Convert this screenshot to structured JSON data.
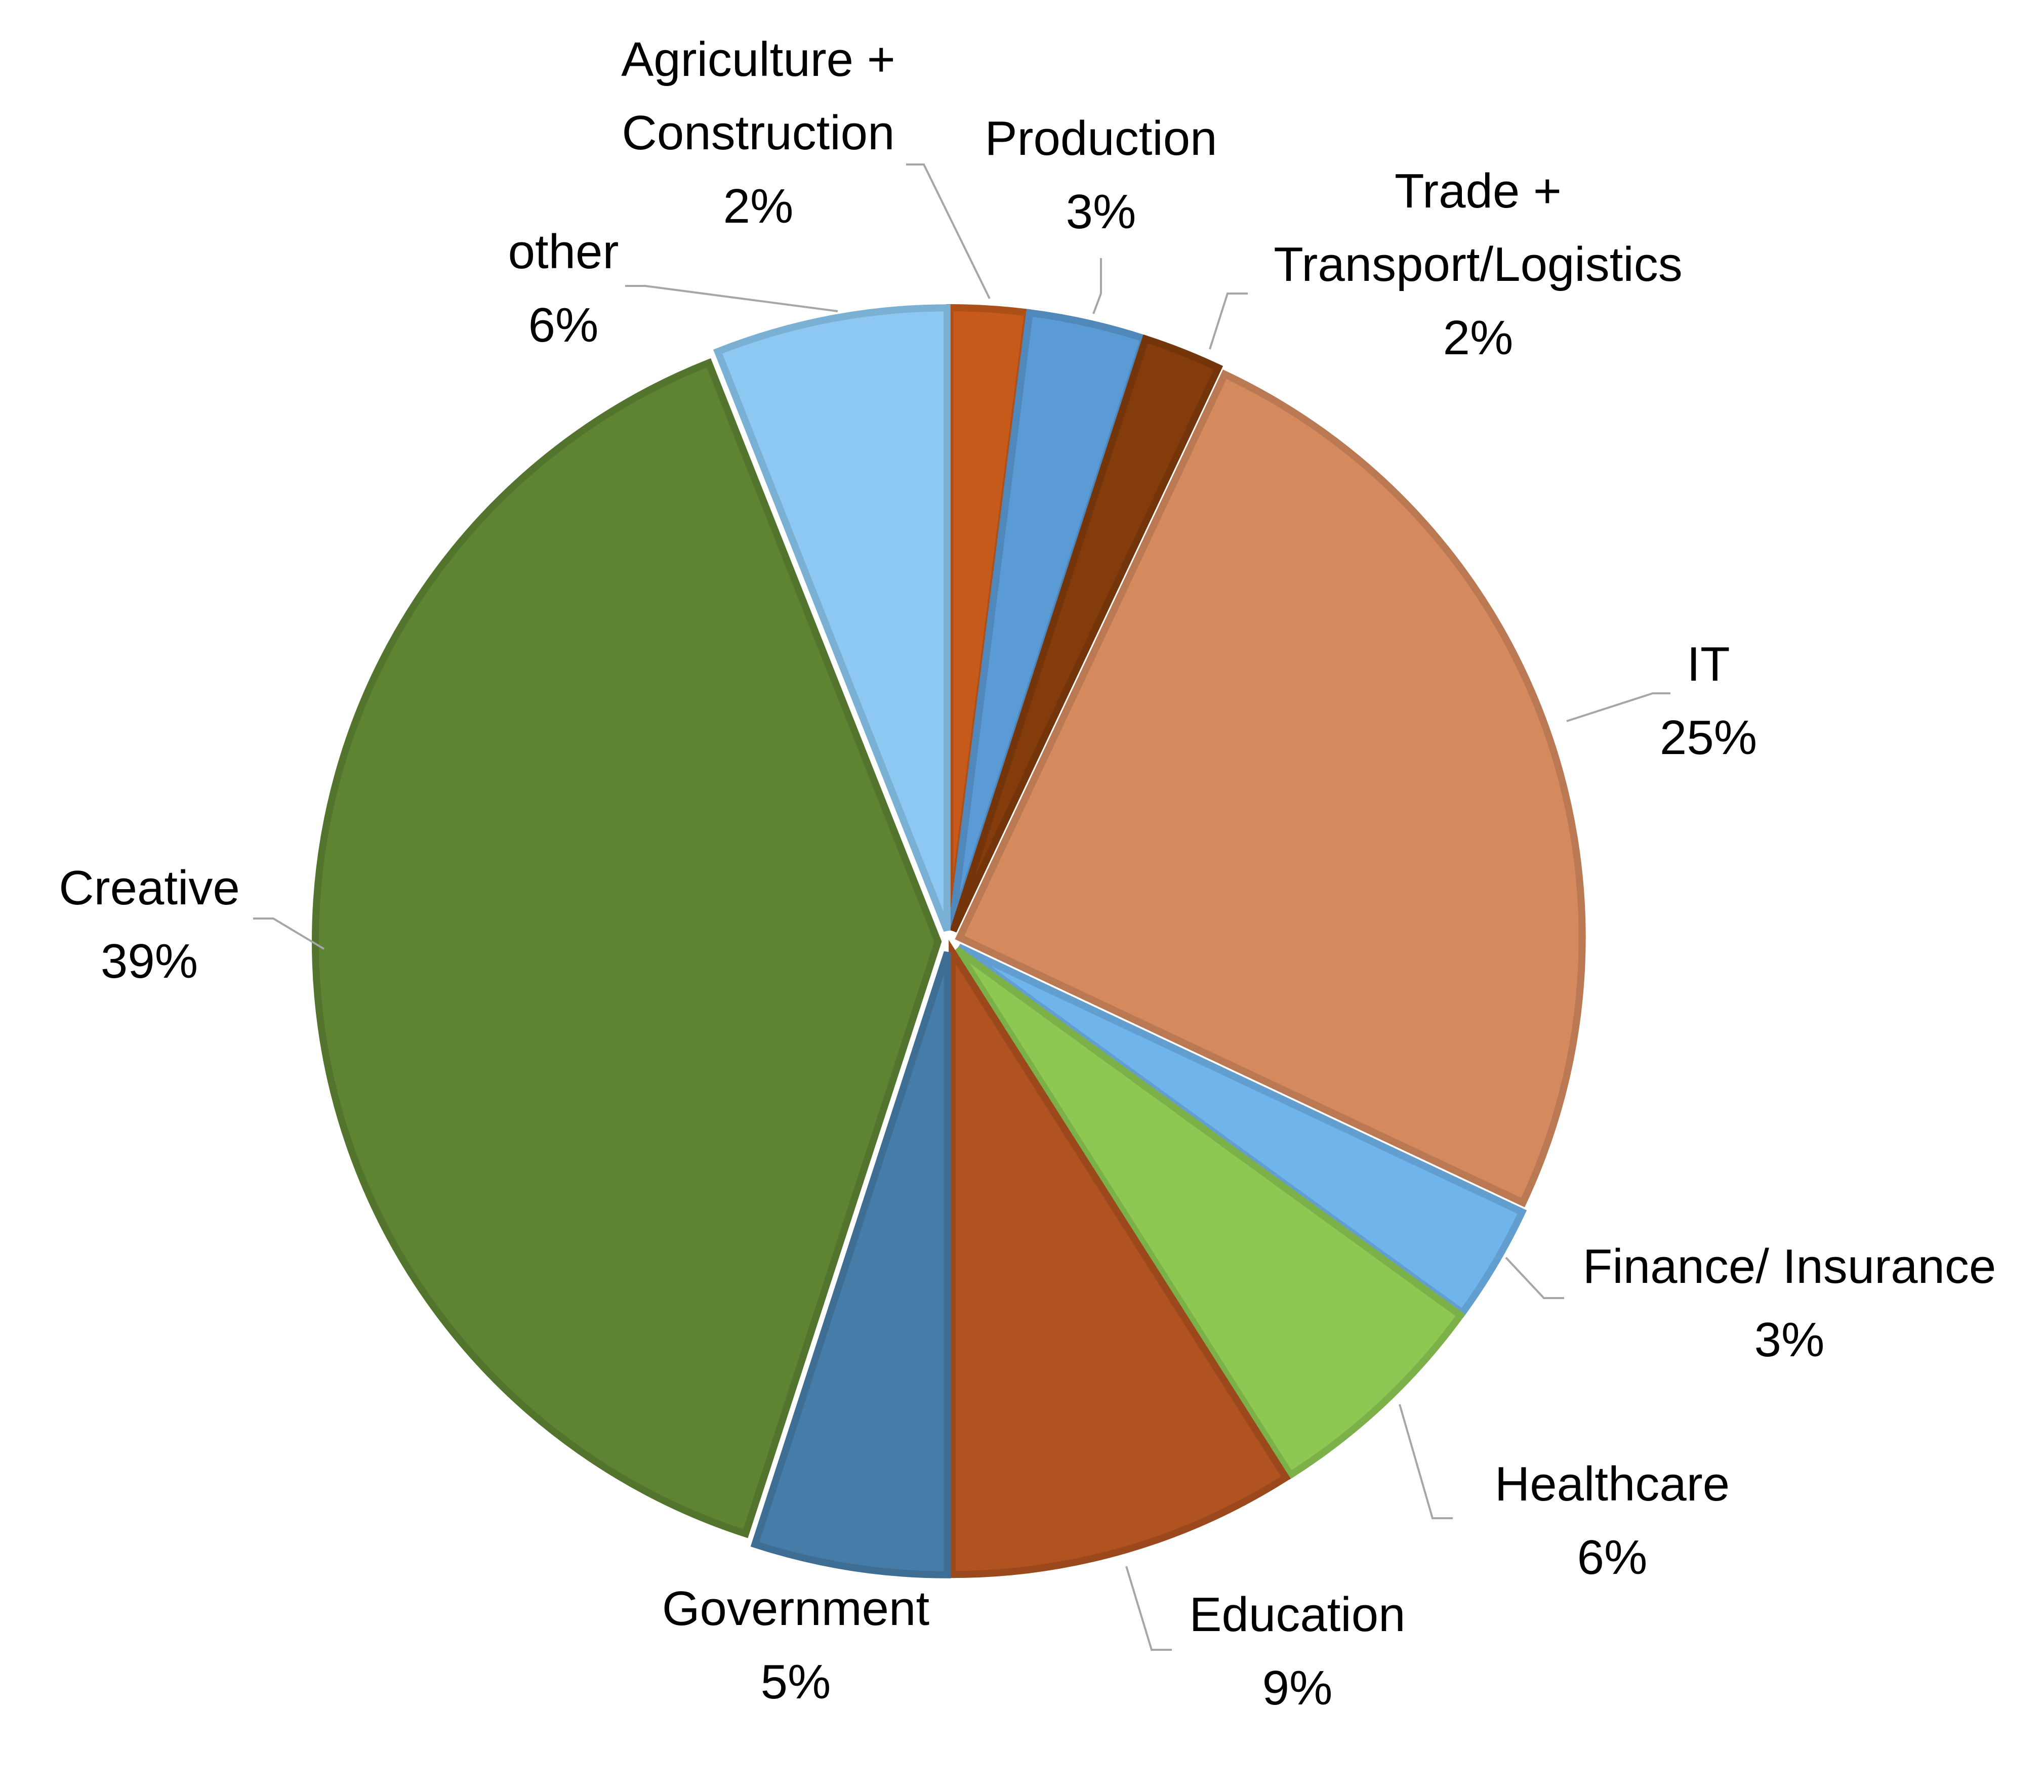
{
  "chart_data": {
    "type": "pie",
    "start_angle_deg": 0,
    "direction": "clockwise",
    "exploded": true,
    "slices": [
      {
        "label_lines": [
          "Agriculture +",
          "Construction"
        ],
        "pct_label": "2%",
        "value": 2,
        "color": "#C55A1B"
      },
      {
        "label_lines": [
          "Production"
        ],
        "pct_label": "3%",
        "value": 3,
        "color": "#5B9BD5"
      },
      {
        "label_lines": [
          "Trade +",
          "Transport/Logistics"
        ],
        "pct_label": "2%",
        "value": 2,
        "color": "#843C0C"
      },
      {
        "label_lines": [
          "IT"
        ],
        "pct_label": "25%",
        "value": 25,
        "color": "#D4895E"
      },
      {
        "label_lines": [
          "Finance/ Insurance"
        ],
        "pct_label": "3%",
        "value": 3,
        "color": "#6FB5EC"
      },
      {
        "label_lines": [
          "Healthcare"
        ],
        "pct_label": "6%",
        "value": 6,
        "color": "#8DC853"
      },
      {
        "label_lines": [
          "Education"
        ],
        "pct_label": "9%",
        "value": 9,
        "color": "#B05320"
      },
      {
        "label_lines": [
          "Government"
        ],
        "pct_label": "5%",
        "value": 5,
        "color": "#467DA8"
      },
      {
        "label_lines": [
          "Creative"
        ],
        "pct_label": "39%",
        "value": 39,
        "color": "#5D8432"
      },
      {
        "label_lines": [
          "other"
        ],
        "pct_label": "6%",
        "value": 6,
        "color": "#8CC8F2"
      }
    ]
  }
}
